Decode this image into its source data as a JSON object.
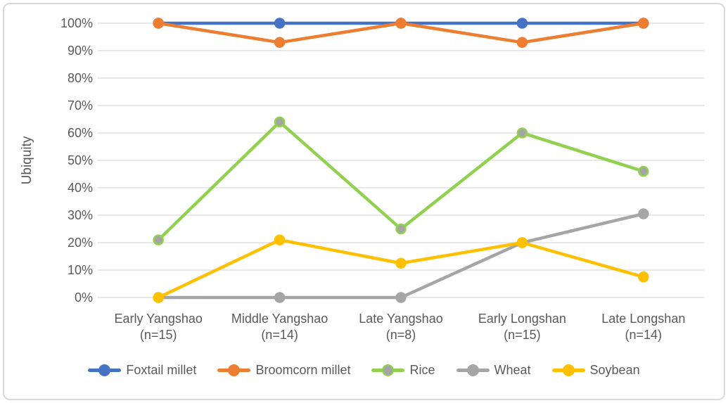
{
  "chart_data": {
    "type": "line",
    "ylabel": "Ubiquity",
    "ylim": [
      0,
      100
    ],
    "ytick_step": 10,
    "ytick_labels": [
      "0%",
      "10%",
      "20%",
      "30%",
      "40%",
      "50%",
      "60%",
      "70%",
      "80%",
      "90%",
      "100%"
    ],
    "categories": [
      {
        "line1": "Early Yangshao",
        "line2": "(n=15)"
      },
      {
        "line1": "Middle Yangshao",
        "line2": "(n=14)"
      },
      {
        "line1": "Late Yangshao",
        "line2": "(n=8)"
      },
      {
        "line1": "Early Longshan",
        "line2": "(n=15)"
      },
      {
        "line1": "Late Longshan",
        "line2": "(n=14)"
      }
    ],
    "series": [
      {
        "name": "Foxtail millet",
        "color": "#4472C4",
        "marker_fill": "#4472C4",
        "values": [
          100,
          100,
          100,
          100,
          100
        ]
      },
      {
        "name": "Broomcorn millet",
        "color": "#ED7D31",
        "marker_fill": "#ED7D31",
        "values": [
          100,
          93,
          100,
          93,
          100
        ]
      },
      {
        "name": "Rice",
        "color": "#92D050",
        "marker_fill": "#A5A5A5",
        "values": [
          21,
          64,
          25,
          60,
          46
        ]
      },
      {
        "name": "Wheat",
        "color": "#A5A5A5",
        "marker_fill": "#A5A5A5",
        "values": [
          0,
          0,
          0,
          20,
          30.5
        ]
      },
      {
        "name": "Soybean",
        "color": "#FFC000",
        "marker_fill": "#FFC000",
        "values": [
          0,
          21,
          12.5,
          20,
          7.5
        ]
      }
    ],
    "grid": true,
    "legend_position": "bottom",
    "gridline_color": "#D9D9D9",
    "text_color": "#595959",
    "background": "#FFFFFF",
    "border_color": "#D9D9D9"
  }
}
